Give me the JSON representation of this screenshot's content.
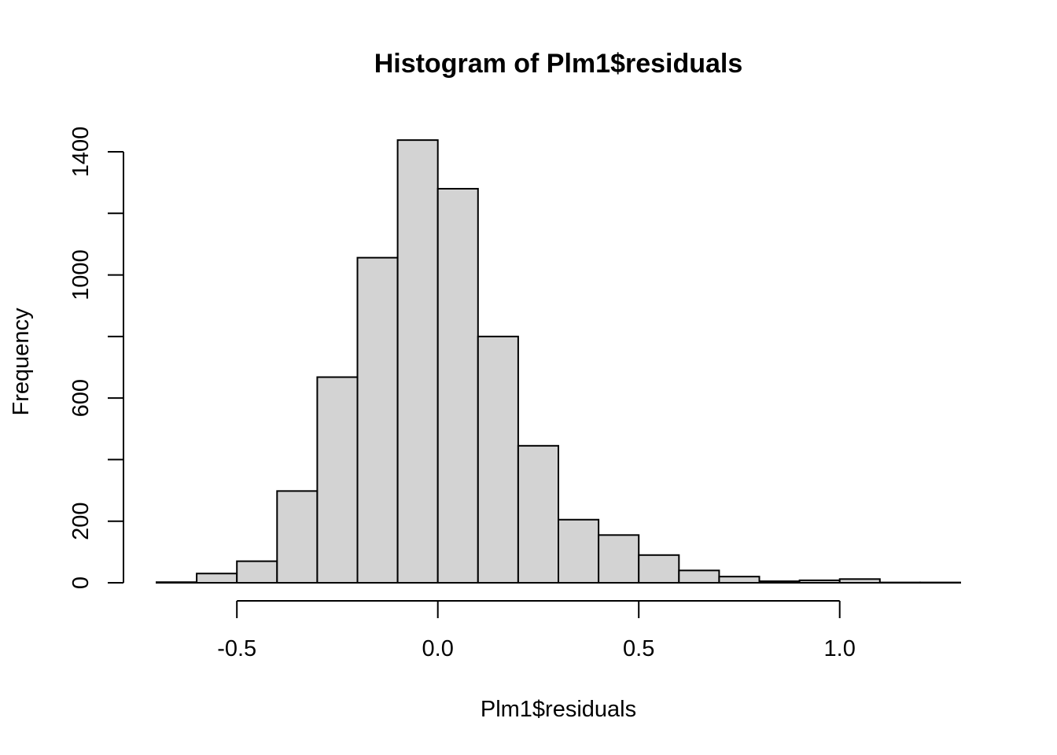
{
  "chart_data": {
    "type": "bar",
    "title": "Histogram of Plm1$residuals",
    "xlabel": "Plm1$residuals",
    "ylabel": "Frequency",
    "bin_edges": [
      -0.7,
      -0.6,
      -0.5,
      -0.4,
      -0.3,
      -0.2,
      -0.1,
      0.0,
      0.1,
      0.2,
      0.3,
      0.4,
      0.5,
      0.6,
      0.7,
      0.8,
      0.9,
      1.0,
      1.1,
      1.2,
      1.3
    ],
    "values": [
      2,
      30,
      70,
      298,
      668,
      1056,
      1438,
      1280,
      800,
      445,
      205,
      155,
      90,
      40,
      20,
      5,
      8,
      12,
      1,
      1
    ],
    "xlim": [
      -0.7,
      1.3
    ],
    "ylim": [
      0,
      1440
    ],
    "x_ticks": [
      -0.5,
      0.0,
      0.5,
      1.0
    ],
    "x_tick_labels": [
      "-0.5",
      "0.0",
      "0.5",
      "1.0"
    ],
    "y_ticks": [
      0,
      200,
      400,
      600,
      800,
      1000,
      1200,
      1400
    ],
    "y_tick_labels": [
      "0",
      "200",
      "",
      "600",
      "",
      "1000",
      "",
      "1400"
    ],
    "bar_color": "#d3d3d3",
    "border_color": "#000000",
    "grid": false
  }
}
